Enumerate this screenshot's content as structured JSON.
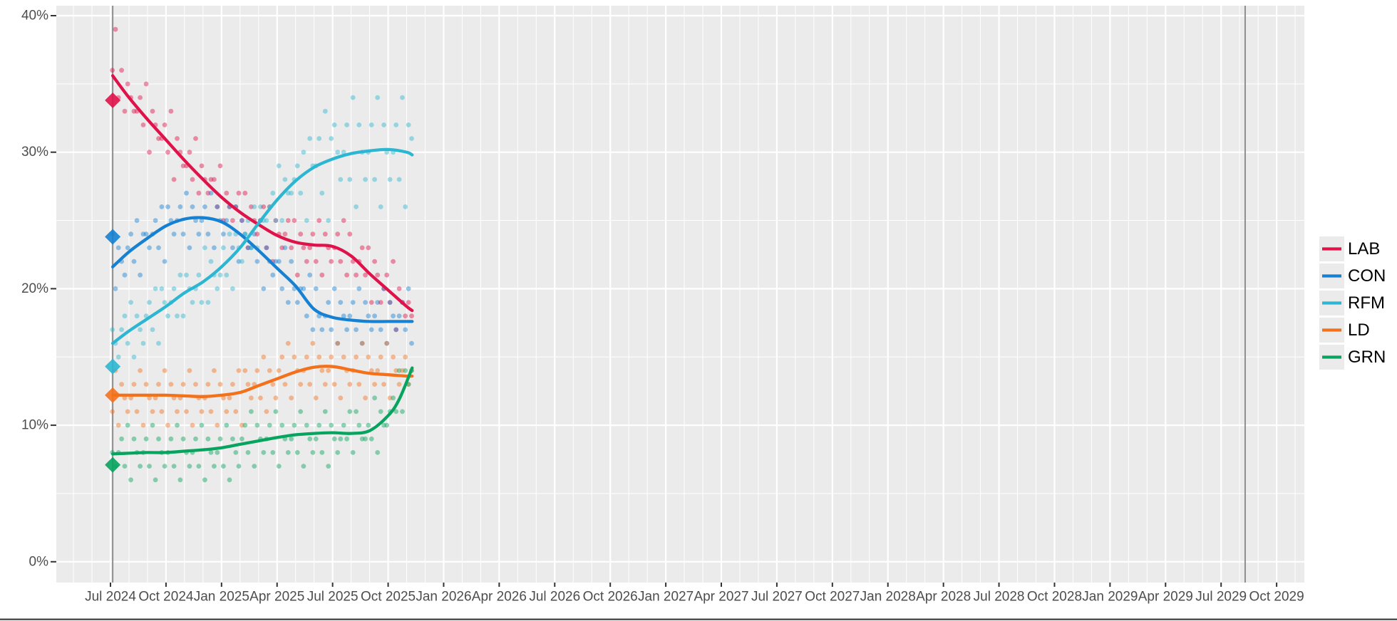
{
  "chart_data": {
    "type": "scatter",
    "title": "",
    "description": "UK voting-intention polls since the July 2024 general election: individual poll dots, loess trend lines, and GE2024 result diamonds",
    "x_axis": {
      "tick_months": [
        0,
        3,
        6,
        9,
        12,
        15,
        18,
        21,
        24,
        27,
        30,
        33,
        36,
        39,
        42,
        45,
        48,
        51,
        54,
        57,
        60,
        63
      ],
      "tick_labels": [
        "Jul 2024",
        "Oct 2024",
        "Jan 2025",
        "Apr 2025",
        "Jul 2025",
        "Oct 2025",
        "Jan 2026",
        "Apr 2026",
        "Jul 2026",
        "Oct 2026",
        "Jan 2027",
        "Apr 2027",
        "Jul 2027",
        "Oct 2027",
        "Jan 2028",
        "Apr 2028",
        "Jul 2028",
        "Oct 2028",
        "Jan 2029",
        "Apr 2029",
        "Jul 2029",
        "Oct 2029"
      ],
      "minor_month_range": [
        -2,
        64
      ]
    },
    "y_axis": {
      "tick_values": [
        0,
        10,
        20,
        30,
        40
      ],
      "tick_labels": [
        "0%",
        "10%",
        "20%",
        "30%",
        "40%"
      ],
      "minor_values": [
        5,
        15,
        25,
        35
      ]
    },
    "reference_lines": [
      {
        "name": "ge2024-election-line",
        "m": 0.12
      },
      {
        "name": "next-election-deadline-line",
        "m": 61.3
      }
    ],
    "series": [
      {
        "id": "LAB",
        "label": "LAB",
        "color": "#e0124a",
        "election_result": 33.8,
        "trend": [
          [
            0.12,
            35.6
          ],
          [
            1,
            34.0
          ],
          [
            2,
            32.4
          ],
          [
            3,
            30.9
          ],
          [
            4,
            29.4
          ],
          [
            5,
            28.0
          ],
          [
            6,
            26.7
          ],
          [
            7,
            25.6
          ],
          [
            8,
            24.7
          ],
          [
            9,
            23.9
          ],
          [
            10,
            23.4
          ],
          [
            11,
            23.2
          ],
          [
            12,
            23.1
          ],
          [
            13,
            22.4
          ],
          [
            14,
            21.1
          ],
          [
            15,
            19.9
          ],
          [
            16,
            18.7
          ],
          [
            16.3,
            18.4
          ]
        ]
      },
      {
        "id": "CON",
        "label": "CON",
        "color": "#1681d2",
        "election_result": 23.8,
        "trend": [
          [
            0.12,
            21.6
          ],
          [
            1,
            22.7
          ],
          [
            2,
            23.7
          ],
          [
            3,
            24.6
          ],
          [
            4,
            25.1
          ],
          [
            5,
            25.2
          ],
          [
            6,
            24.9
          ],
          [
            7,
            24.0
          ],
          [
            8,
            22.8
          ],
          [
            9,
            21.5
          ],
          [
            10,
            20.2
          ],
          [
            11,
            18.5
          ],
          [
            12,
            17.9
          ],
          [
            13,
            17.7
          ],
          [
            14,
            17.6
          ],
          [
            15,
            17.6
          ],
          [
            16,
            17.6
          ],
          [
            16.3,
            17.6
          ]
        ]
      },
      {
        "id": "RFM",
        "label": "RFM",
        "color": "#2cb6d1",
        "election_result": 14.3,
        "trend": [
          [
            0.12,
            16.0
          ],
          [
            1,
            16.9
          ],
          [
            2,
            17.8
          ],
          [
            3,
            18.7
          ],
          [
            4,
            19.7
          ],
          [
            5,
            20.5
          ],
          [
            6,
            21.6
          ],
          [
            7,
            23.0
          ],
          [
            8,
            24.8
          ],
          [
            9,
            26.5
          ],
          [
            10,
            27.9
          ],
          [
            11,
            28.9
          ],
          [
            12,
            29.5
          ],
          [
            13,
            29.9
          ],
          [
            14,
            30.1
          ],
          [
            15,
            30.2
          ],
          [
            16,
            30.0
          ],
          [
            16.3,
            29.8
          ]
        ]
      },
      {
        "id": "LD",
        "label": "LD",
        "color": "#f4711c",
        "election_result": 12.2,
        "trend": [
          [
            0.12,
            12.2
          ],
          [
            1,
            12.2
          ],
          [
            2,
            12.2
          ],
          [
            3,
            12.2
          ],
          [
            4,
            12.15
          ],
          [
            5,
            12.1
          ],
          [
            6,
            12.2
          ],
          [
            7,
            12.4
          ],
          [
            8,
            12.9
          ],
          [
            9,
            13.4
          ],
          [
            10,
            13.9
          ],
          [
            11,
            14.25
          ],
          [
            12,
            14.3
          ],
          [
            13,
            14.05
          ],
          [
            14,
            13.8
          ],
          [
            15,
            13.7
          ],
          [
            16,
            13.6
          ],
          [
            16.3,
            13.6
          ]
        ]
      },
      {
        "id": "GRN",
        "label": "GRN",
        "color": "#07a45f",
        "election_result": 7.1,
        "trend": [
          [
            0.12,
            7.9
          ],
          [
            1,
            7.95
          ],
          [
            2,
            8.0
          ],
          [
            3,
            8.0
          ],
          [
            4,
            8.1
          ],
          [
            5,
            8.2
          ],
          [
            6,
            8.35
          ],
          [
            7,
            8.6
          ],
          [
            8,
            8.85
          ],
          [
            9,
            9.1
          ],
          [
            10,
            9.3
          ],
          [
            11,
            9.4
          ],
          [
            12,
            9.45
          ],
          [
            13,
            9.4
          ],
          [
            14,
            9.6
          ],
          [
            15,
            10.7
          ],
          [
            15.6,
            11.9
          ],
          [
            16.3,
            14.2
          ]
        ]
      }
    ],
    "poll_columns": [
      "months_since_jul2024",
      "LAB",
      "CON",
      "RFM",
      "LD",
      "GRN"
    ],
    "polls": [
      [
        0.1,
        36,
        24,
        17,
        11,
        8
      ],
      [
        0.27,
        39,
        20,
        16,
        14,
        7
      ],
      [
        0.43,
        34,
        23,
        15,
        10,
        8
      ],
      [
        0.6,
        36,
        22,
        17,
        13,
        9
      ],
      [
        0.77,
        33,
        21,
        18,
        12,
        7
      ],
      [
        0.93,
        35,
        23,
        16,
        11,
        10
      ],
      [
        1.1,
        34,
        24,
        19,
        12,
        6
      ],
      [
        1.27,
        33,
        22,
        15,
        13,
        9
      ],
      [
        1.43,
        33,
        25,
        18,
        11,
        8
      ],
      [
        1.6,
        34,
        21,
        17,
        14,
        7
      ],
      [
        1.77,
        32,
        24,
        16,
        10,
        8
      ],
      [
        1.93,
        35,
        24,
        18,
        13,
        9
      ],
      [
        2.1,
        30,
        23,
        19,
        12,
        7
      ],
      [
        2.27,
        33,
        24,
        17,
        11,
        10
      ],
      [
        2.43,
        32,
        25,
        20,
        12,
        6
      ],
      [
        2.6,
        31,
        23,
        16,
        13,
        9
      ],
      [
        2.77,
        31,
        26,
        20,
        11,
        8
      ],
      [
        2.93,
        32,
        22,
        19,
        14,
        7
      ],
      [
        3.1,
        30,
        26,
        18,
        10,
        8
      ],
      [
        3.27,
        33,
        25,
        19,
        13,
        9
      ],
      [
        3.43,
        28,
        24,
        20,
        12,
        7
      ],
      [
        3.6,
        31,
        25,
        18,
        11,
        10
      ],
      [
        3.77,
        30,
        26,
        21,
        12,
        6
      ],
      [
        3.93,
        29,
        24,
        18,
        13,
        9
      ],
      [
        4.1,
        29,
        27,
        21,
        11,
        8
      ],
      [
        4.27,
        30,
        23,
        20,
        14,
        7
      ],
      [
        4.43,
        28,
        26,
        19,
        10,
        8
      ],
      [
        4.6,
        31,
        25,
        20,
        13,
        9
      ],
      [
        4.77,
        27,
        24,
        21,
        12,
        7
      ],
      [
        4.93,
        29,
        25,
        19,
        11,
        10
      ],
      [
        5.1,
        28,
        26,
        23,
        12,
        6
      ],
      [
        5.27,
        27,
        24,
        19,
        13,
        9
      ],
      [
        5.43,
        28,
        27,
        22,
        11,
        8
      ],
      [
        5.6,
        28,
        23,
        21,
        14,
        7
      ],
      [
        5.77,
        26,
        26,
        20,
        10,
        8
      ],
      [
        5.93,
        29,
        25,
        21,
        13,
        9
      ],
      [
        6.1,
        25,
        24,
        23,
        12,
        7
      ],
      [
        6.27,
        27,
        25,
        21,
        11,
        10
      ],
      [
        6.43,
        26,
        26,
        24,
        12,
        6
      ],
      [
        6.6,
        25,
        23,
        20,
        13,
        9
      ],
      [
        6.77,
        26,
        26,
        24,
        11,
        8
      ],
      [
        6.93,
        27,
        22,
        23,
        14,
        7
      ],
      [
        7.1,
        25,
        25,
        22,
        10,
        9
      ],
      [
        7.27,
        27,
        24,
        24,
        14,
        10
      ],
      [
        7.43,
        23,
        23,
        25,
        13,
        8
      ],
      [
        7.6,
        26,
        23,
        23,
        12,
        11
      ],
      [
        7.77,
        25,
        24,
        26,
        13,
        7
      ],
      [
        7.93,
        24,
        22,
        23,
        14,
        10
      ],
      [
        8.1,
        25,
        25,
        26,
        12,
        9
      ],
      [
        8.27,
        26,
        20,
        25,
        15,
        8
      ],
      [
        8.43,
        23,
        23,
        25,
        11,
        9
      ],
      [
        8.6,
        26,
        22,
        26,
        14,
        10
      ],
      [
        8.77,
        22,
        21,
        27,
        13,
        8
      ],
      [
        8.93,
        25,
        22,
        25,
        12,
        11
      ],
      [
        9.1,
        24,
        22,
        29,
        14,
        7
      ],
      [
        9.27,
        23,
        20,
        25,
        15,
        10
      ],
      [
        9.43,
        24,
        23,
        28,
        13,
        9
      ],
      [
        9.6,
        25,
        19,
        27,
        16,
        8
      ],
      [
        9.77,
        23,
        22,
        27,
        12,
        9
      ],
      [
        9.93,
        25,
        20,
        28,
        15,
        10
      ],
      [
        10.1,
        21,
        19,
        29,
        14,
        8
      ],
      [
        10.27,
        24,
        20,
        27,
        13,
        11
      ],
      [
        10.43,
        23,
        20,
        30,
        14,
        7
      ],
      [
        10.6,
        22,
        18,
        25,
        15,
        10
      ],
      [
        10.77,
        23,
        21,
        31,
        13,
        9
      ],
      [
        10.93,
        24,
        17,
        29,
        16,
        8
      ],
      [
        11.1,
        22,
        20,
        29,
        12,
        9
      ],
      [
        11.27,
        25,
        18,
        31,
        15,
        10
      ],
      [
        11.43,
        21,
        17,
        27,
        14,
        8
      ],
      [
        11.6,
        24,
        18,
        33,
        13,
        11
      ],
      [
        11.77,
        23,
        19,
        25,
        14,
        7
      ],
      [
        11.93,
        22,
        17,
        31,
        15,
        10
      ],
      [
        12.1,
        23,
        20,
        32,
        13,
        9
      ],
      [
        12.27,
        24,
        16,
        30,
        16,
        8
      ],
      [
        12.43,
        22,
        19,
        28,
        12,
        9
      ],
      [
        12.6,
        25,
        18,
        30,
        15,
        10
      ],
      [
        12.77,
        21,
        17,
        32,
        14,
        9
      ],
      [
        12.93,
        24,
        18,
        28,
        13,
        11
      ],
      [
        13.1,
        22,
        19,
        34,
        14,
        8
      ],
      [
        13.27,
        21,
        17,
        26,
        15,
        11
      ],
      [
        13.43,
        22,
        20,
        32,
        13,
        10
      ],
      [
        13.6,
        23,
        16,
        30,
        16,
        9
      ],
      [
        13.77,
        21,
        19,
        28,
        12,
        9
      ],
      [
        13.93,
        23,
        18,
        30,
        15,
        10
      ],
      [
        14.1,
        19,
        17,
        32,
        14,
        9
      ],
      [
        14.27,
        22,
        18,
        28,
        13,
        12
      ],
      [
        14.43,
        21,
        19,
        34,
        14,
        8
      ],
      [
        14.6,
        19,
        17,
        26,
        15,
        11
      ],
      [
        14.77,
        20,
        20,
        32,
        13,
        10
      ],
      [
        14.93,
        21,
        16,
        30,
        16,
        10
      ],
      [
        15.1,
        19,
        19,
        28,
        12,
        11
      ],
      [
        15.27,
        22,
        18,
        30,
        15,
        12
      ],
      [
        15.43,
        17,
        17,
        32,
        14,
        11
      ],
      [
        15.6,
        20,
        18,
        28,
        13,
        14
      ],
      [
        15.77,
        19,
        19,
        34,
        14,
        11
      ],
      [
        15.93,
        18,
        17,
        26,
        15,
        14
      ],
      [
        16.1,
        19,
        20,
        32,
        13,
        13
      ],
      [
        16.27,
        18,
        16,
        31,
        14,
        14
      ]
    ],
    "legend_position": "right-center"
  },
  "style": {
    "panel_bg": "#ebebeb",
    "grid_color": "#ffffff",
    "axis_text_color": "#4d4d4d",
    "tick_color": "#333333",
    "ref_line_color": "#8f8f8f",
    "legend_text_color": "#000000",
    "legend_key_bg": "#ebebeb",
    "bottom_rule_color": "#4f4f4f",
    "point_opacity": 0.45,
    "diamond_opacity": 0.9
  }
}
